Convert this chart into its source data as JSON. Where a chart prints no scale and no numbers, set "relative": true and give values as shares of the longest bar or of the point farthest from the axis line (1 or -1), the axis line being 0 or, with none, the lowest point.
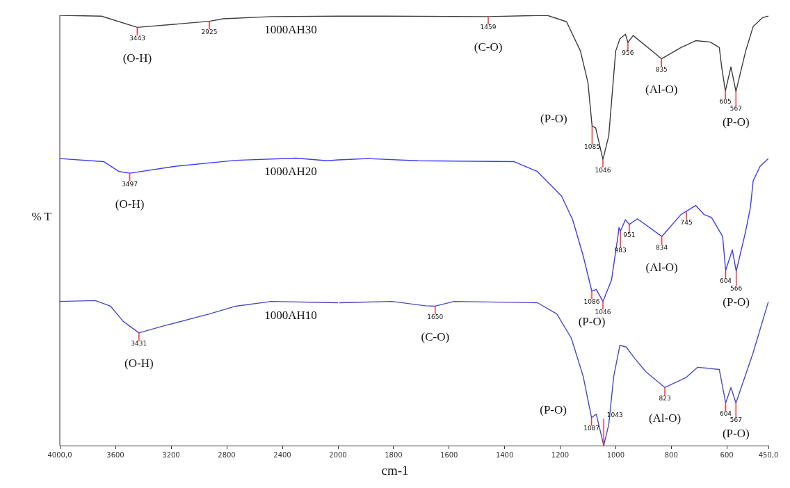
{
  "chart_data": [
    {
      "type": "line",
      "relative": true,
      "ylabel": "% T",
      "xlim": [
        4000,
        2000
      ],
      "xticks": [
        {
          "value": 4000,
          "label": "4000,0"
        },
        3600,
        3200,
        2800,
        2400,
        2000
      ],
      "tick_labels": "x",
      "marker": "none",
      "line_style": "solid",
      "series": [
        {
          "name": "1000AH30",
          "color": "#3c3c3c",
          "x": [
            4000,
            3700,
            3443,
            2925,
            2825,
            2480,
            2000
          ],
          "values": [
            1.0,
            0.998,
            0.972,
            0.986,
            0.992,
            0.997,
            0.998
          ]
        },
        {
          "name": "1000AH20",
          "color": "#3c3cff",
          "x": [
            4000,
            3685,
            3575,
            3497,
            3170,
            2735,
            2300,
            2075,
            2000
          ],
          "values": [
            0.667,
            0.66,
            0.637,
            0.633,
            0.649,
            0.663,
            0.668,
            0.662,
            0.664
          ]
        },
        {
          "name": "1000AH10",
          "color": "#4848c8",
          "x": [
            4000,
            3745,
            3635,
            3545,
            3431,
            3255,
            2925,
            2735,
            2480,
            2000
          ],
          "values": [
            0.335,
            0.337,
            0.324,
            0.289,
            0.262,
            0.278,
            0.306,
            0.324,
            0.335,
            0.332
          ]
        }
      ],
      "annotations": [
        {
          "text": "3443",
          "x": 3443,
          "y": 0.972
        },
        {
          "text": "2925",
          "x": 2925,
          "y": 0.986
        },
        {
          "text": "3497",
          "x": 3497,
          "y": 0.633
        },
        {
          "text": "3431",
          "x": 3431,
          "y": 0.262
        },
        {
          "text": "(O-H)",
          "x": 3443,
          "y": 0.972
        },
        {
          "text": "(O-H)",
          "x": 3497,
          "y": 0.633
        },
        {
          "text": "(O-H)",
          "x": 3431,
          "y": 0.262
        }
      ]
    },
    {
      "type": "line",
      "relative": true,
      "xlabel": "cm-1",
      "xlim": [
        2000,
        450
      ],
      "xticks": [
        {
          "value": 2000,
          "label": null
        },
        1800,
        1600,
        1400,
        1200,
        1000,
        800,
        600,
        {
          "value": 450,
          "label": "450,0"
        }
      ],
      "tick_labels": "x",
      "marker": "none",
      "line_style": "solid",
      "series": [
        {
          "color": "#3c3c3c",
          "x": [
            2000,
            1830,
            1459,
            1247,
            1177,
            1127,
            1100,
            1085,
            1072,
            1046,
            1025,
            1000,
            985,
            965,
            956,
            937,
            835,
            765,
            712,
            660,
            627,
            618,
            605,
            585,
            567,
            532,
            505,
            470,
            450
          ],
          "values": [
            0.998,
            0.998,
            0.997,
            1.0,
            0.985,
            0.917,
            0.844,
            0.743,
            0.738,
            0.665,
            0.72,
            0.917,
            0.945,
            0.956,
            0.937,
            0.953,
            0.899,
            0.925,
            0.941,
            0.938,
            0.925,
            0.878,
            0.824,
            0.88,
            0.823,
            0.917,
            0.974,
            0.995,
            0.998
          ]
        },
        {
          "color": "#3c3cff",
          "x": [
            2000,
            1893,
            1712,
            1367,
            1282,
            1195,
            1155,
            1117,
            1086,
            1070,
            1046,
            1015,
            992,
            988,
            983,
            965,
            951,
            922,
            834,
            765,
            712,
            682,
            655,
            615,
            604,
            580,
            566,
            532,
            515,
            505,
            480,
            450
          ],
          "values": [
            0.664,
            0.667,
            0.662,
            0.66,
            0.637,
            0.58,
            0.525,
            0.441,
            0.359,
            0.363,
            0.335,
            0.385,
            0.486,
            0.507,
            0.498,
            0.525,
            0.514,
            0.527,
            0.486,
            0.537,
            0.558,
            0.537,
            0.53,
            0.486,
            0.407,
            0.455,
            0.405,
            0.498,
            0.553,
            0.615,
            0.649,
            0.667
          ]
        },
        {
          "color": "#4848c8",
          "x": [
            1995,
            1805,
            1685,
            1650,
            1582,
            1282,
            1212,
            1160,
            1117,
            1087,
            1070,
            1043,
            1025,
            1007,
            985,
            962,
            932,
            892,
            823,
            747,
            705,
            627,
            604,
            585,
            567,
            505,
            450
          ],
          "values": [
            0.332,
            0.335,
            0.325,
            0.324,
            0.335,
            0.332,
            0.306,
            0.25,
            0.161,
            0.065,
            0.073,
            0.0,
            0.049,
            0.161,
            0.233,
            0.229,
            0.203,
            0.172,
            0.135,
            0.158,
            0.182,
            0.177,
            0.099,
            0.135,
            0.099,
            0.216,
            0.335
          ]
        }
      ],
      "annotations": [
        {
          "text": "1459",
          "x": 1459,
          "y": 0.997
        },
        {
          "text": "956",
          "x": 956,
          "y": 0.937
        },
        {
          "text": "835",
          "x": 835,
          "y": 0.899
        },
        {
          "text": "605",
          "x": 605,
          "y": 0.824
        },
        {
          "text": "567",
          "x": 567,
          "y": 0.823
        },
        {
          "text": "1085",
          "x": 1085,
          "y": 0.743
        },
        {
          "text": "1046",
          "x": 1046,
          "y": 0.665
        },
        {
          "text": "983",
          "x": 983,
          "y": 0.498
        },
        {
          "text": "951",
          "x": 951,
          "y": 0.514
        },
        {
          "text": "834",
          "x": 834,
          "y": 0.486
        },
        {
          "text": "745",
          "x": 745,
          "y": 0.544
        },
        {
          "text": "604",
          "x": 604,
          "y": 0.407
        },
        {
          "text": "566",
          "x": 566,
          "y": 0.405
        },
        {
          "text": "1086",
          "x": 1086,
          "y": 0.359
        },
        {
          "text": "1046",
          "x": 1046,
          "y": 0.335
        },
        {
          "text": "1650",
          "x": 1650,
          "y": 0.324
        },
        {
          "text": "1087",
          "x": 1087,
          "y": 0.065
        },
        {
          "text": "1043",
          "x": 1043,
          "y": 0.0
        },
        {
          "text": "823",
          "x": 823,
          "y": 0.135
        },
        {
          "text": "604",
          "x": 604,
          "y": 0.099
        },
        {
          "text": "567",
          "x": 567,
          "y": 0.099
        },
        {
          "text": "(C-O)",
          "x": 1459,
          "y": 0.997
        },
        {
          "text": "(P-O)",
          "x": 1085,
          "y": 0.743
        },
        {
          "text": "(Al-O)",
          "x": 835,
          "y": 0.899
        },
        {
          "text": "(P-O)",
          "x": 567,
          "y": 0.823
        },
        {
          "text": "(P-O)",
          "x": 1086,
          "y": 0.359
        },
        {
          "text": "(Al-O)",
          "x": 834,
          "y": 0.486
        },
        {
          "text": "(P-O)",
          "x": 566,
          "y": 0.405
        },
        {
          "text": "(C-O)",
          "x": 1650,
          "y": 0.324
        },
        {
          "text": "(P-O)",
          "x": 1087,
          "y": 0.065
        },
        {
          "text": "(Al-O)",
          "x": 823,
          "y": 0.135
        },
        {
          "text": "(P-O)",
          "x": 567,
          "y": 0.099
        }
      ]
    }
  ]
}
